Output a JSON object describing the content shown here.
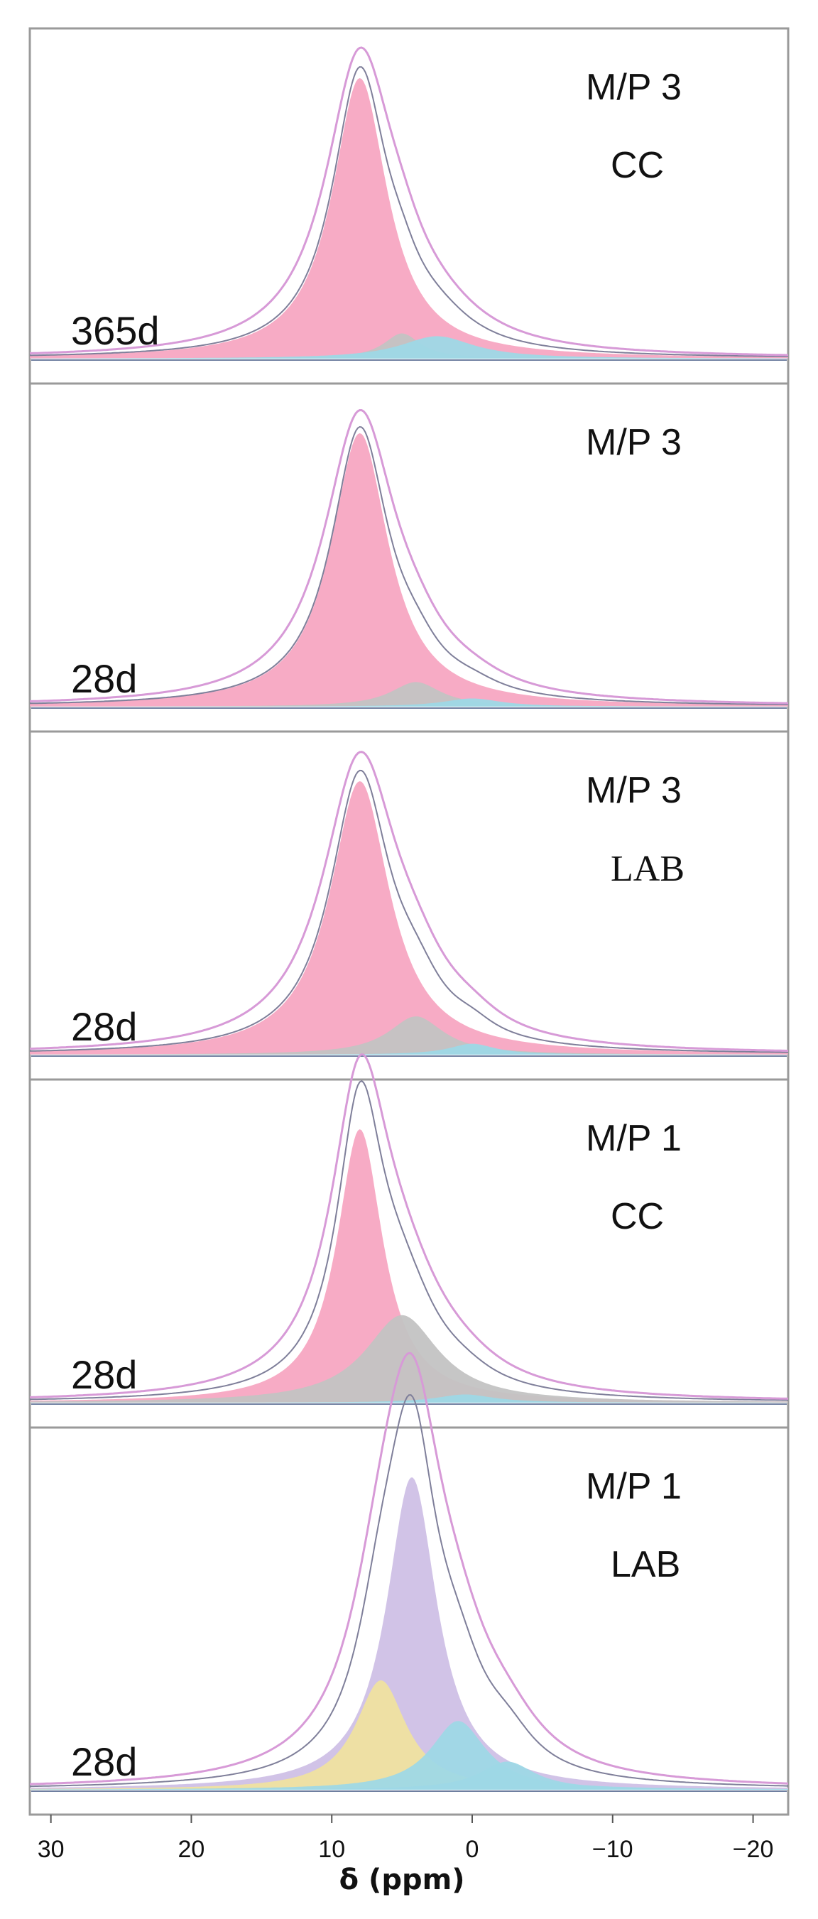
{
  "chart_data": {
    "type": "area",
    "x_axis": {
      "label": "δ (ppm)",
      "reversed": true,
      "xlim": [
        31.5,
        -22.5
      ],
      "ticks": [
        30,
        20,
        10,
        0,
        -10,
        -20
      ],
      "tick_labels": [
        "30",
        "20",
        "10",
        "0",
        "−10",
        "−20"
      ]
    },
    "panels": [
      {
        "title": "M/P 3",
        "subtitle": "CC",
        "subtitle_font": "sans",
        "age_label": "365d",
        "components": [
          {
            "color": "#f7a6c2",
            "center": 8.0,
            "amplitude": 1.0,
            "width": 2.4
          },
          {
            "color": "#c3c3c3",
            "center": 5.0,
            "amplitude": 0.09,
            "width": 1.6
          },
          {
            "color": "#9ed8e6",
            "center": 2.5,
            "amplitude": 0.08,
            "width": 3.2
          }
        ]
      },
      {
        "title": "M/P 3",
        "subtitle": "",
        "subtitle_font": "sans",
        "age_label": "28d",
        "components": [
          {
            "color": "#f7a6c2",
            "center": 8.0,
            "amplitude": 1.0,
            "width": 2.5
          },
          {
            "color": "#c3c3c3",
            "center": 4.0,
            "amplitude": 0.09,
            "width": 2.2
          },
          {
            "color": "#9ed8e6",
            "center": 0.0,
            "amplitude": 0.03,
            "width": 2.5
          }
        ]
      },
      {
        "title": "M/P 3",
        "subtitle": "LAB",
        "subtitle_font": "serif",
        "age_label": "28d",
        "components": [
          {
            "color": "#f7a6c2",
            "center": 8.0,
            "amplitude": 1.0,
            "width": 2.6
          },
          {
            "color": "#c3c3c3",
            "center": 4.0,
            "amplitude": 0.14,
            "width": 2.4
          },
          {
            "color": "#9ed8e6",
            "center": 0.0,
            "amplitude": 0.04,
            "width": 2.0
          }
        ]
      },
      {
        "title": "M/P 1",
        "subtitle": "CC",
        "subtitle_font": "sans",
        "age_label": "28d",
        "components": [
          {
            "color": "#f7a6c2",
            "center": 8.0,
            "amplitude": 1.0,
            "width": 2.0
          },
          {
            "color": "#c3c3c3",
            "center": 5.0,
            "amplitude": 0.32,
            "width": 3.2
          },
          {
            "color": "#9ed8e6",
            "center": 0.5,
            "amplitude": 0.03,
            "width": 2.5
          }
        ]
      },
      {
        "title": "M/P 1",
        "subtitle": "LAB",
        "subtitle_font": "sans",
        "age_label": "28d",
        "components": [
          {
            "color": "#cfc0e6",
            "center": 4.3,
            "amplitude": 1.0,
            "width": 2.2
          },
          {
            "color": "#efe2a0",
            "center": 6.5,
            "amplitude": 0.35,
            "width": 2.2
          },
          {
            "color": "#9ed8e6",
            "center": 1.0,
            "amplitude": 0.22,
            "width": 2.4
          },
          {
            "color": "#9ed8e6",
            "center": -2.5,
            "amplitude": 0.09,
            "width": 2.4
          }
        ]
      }
    ]
  }
}
